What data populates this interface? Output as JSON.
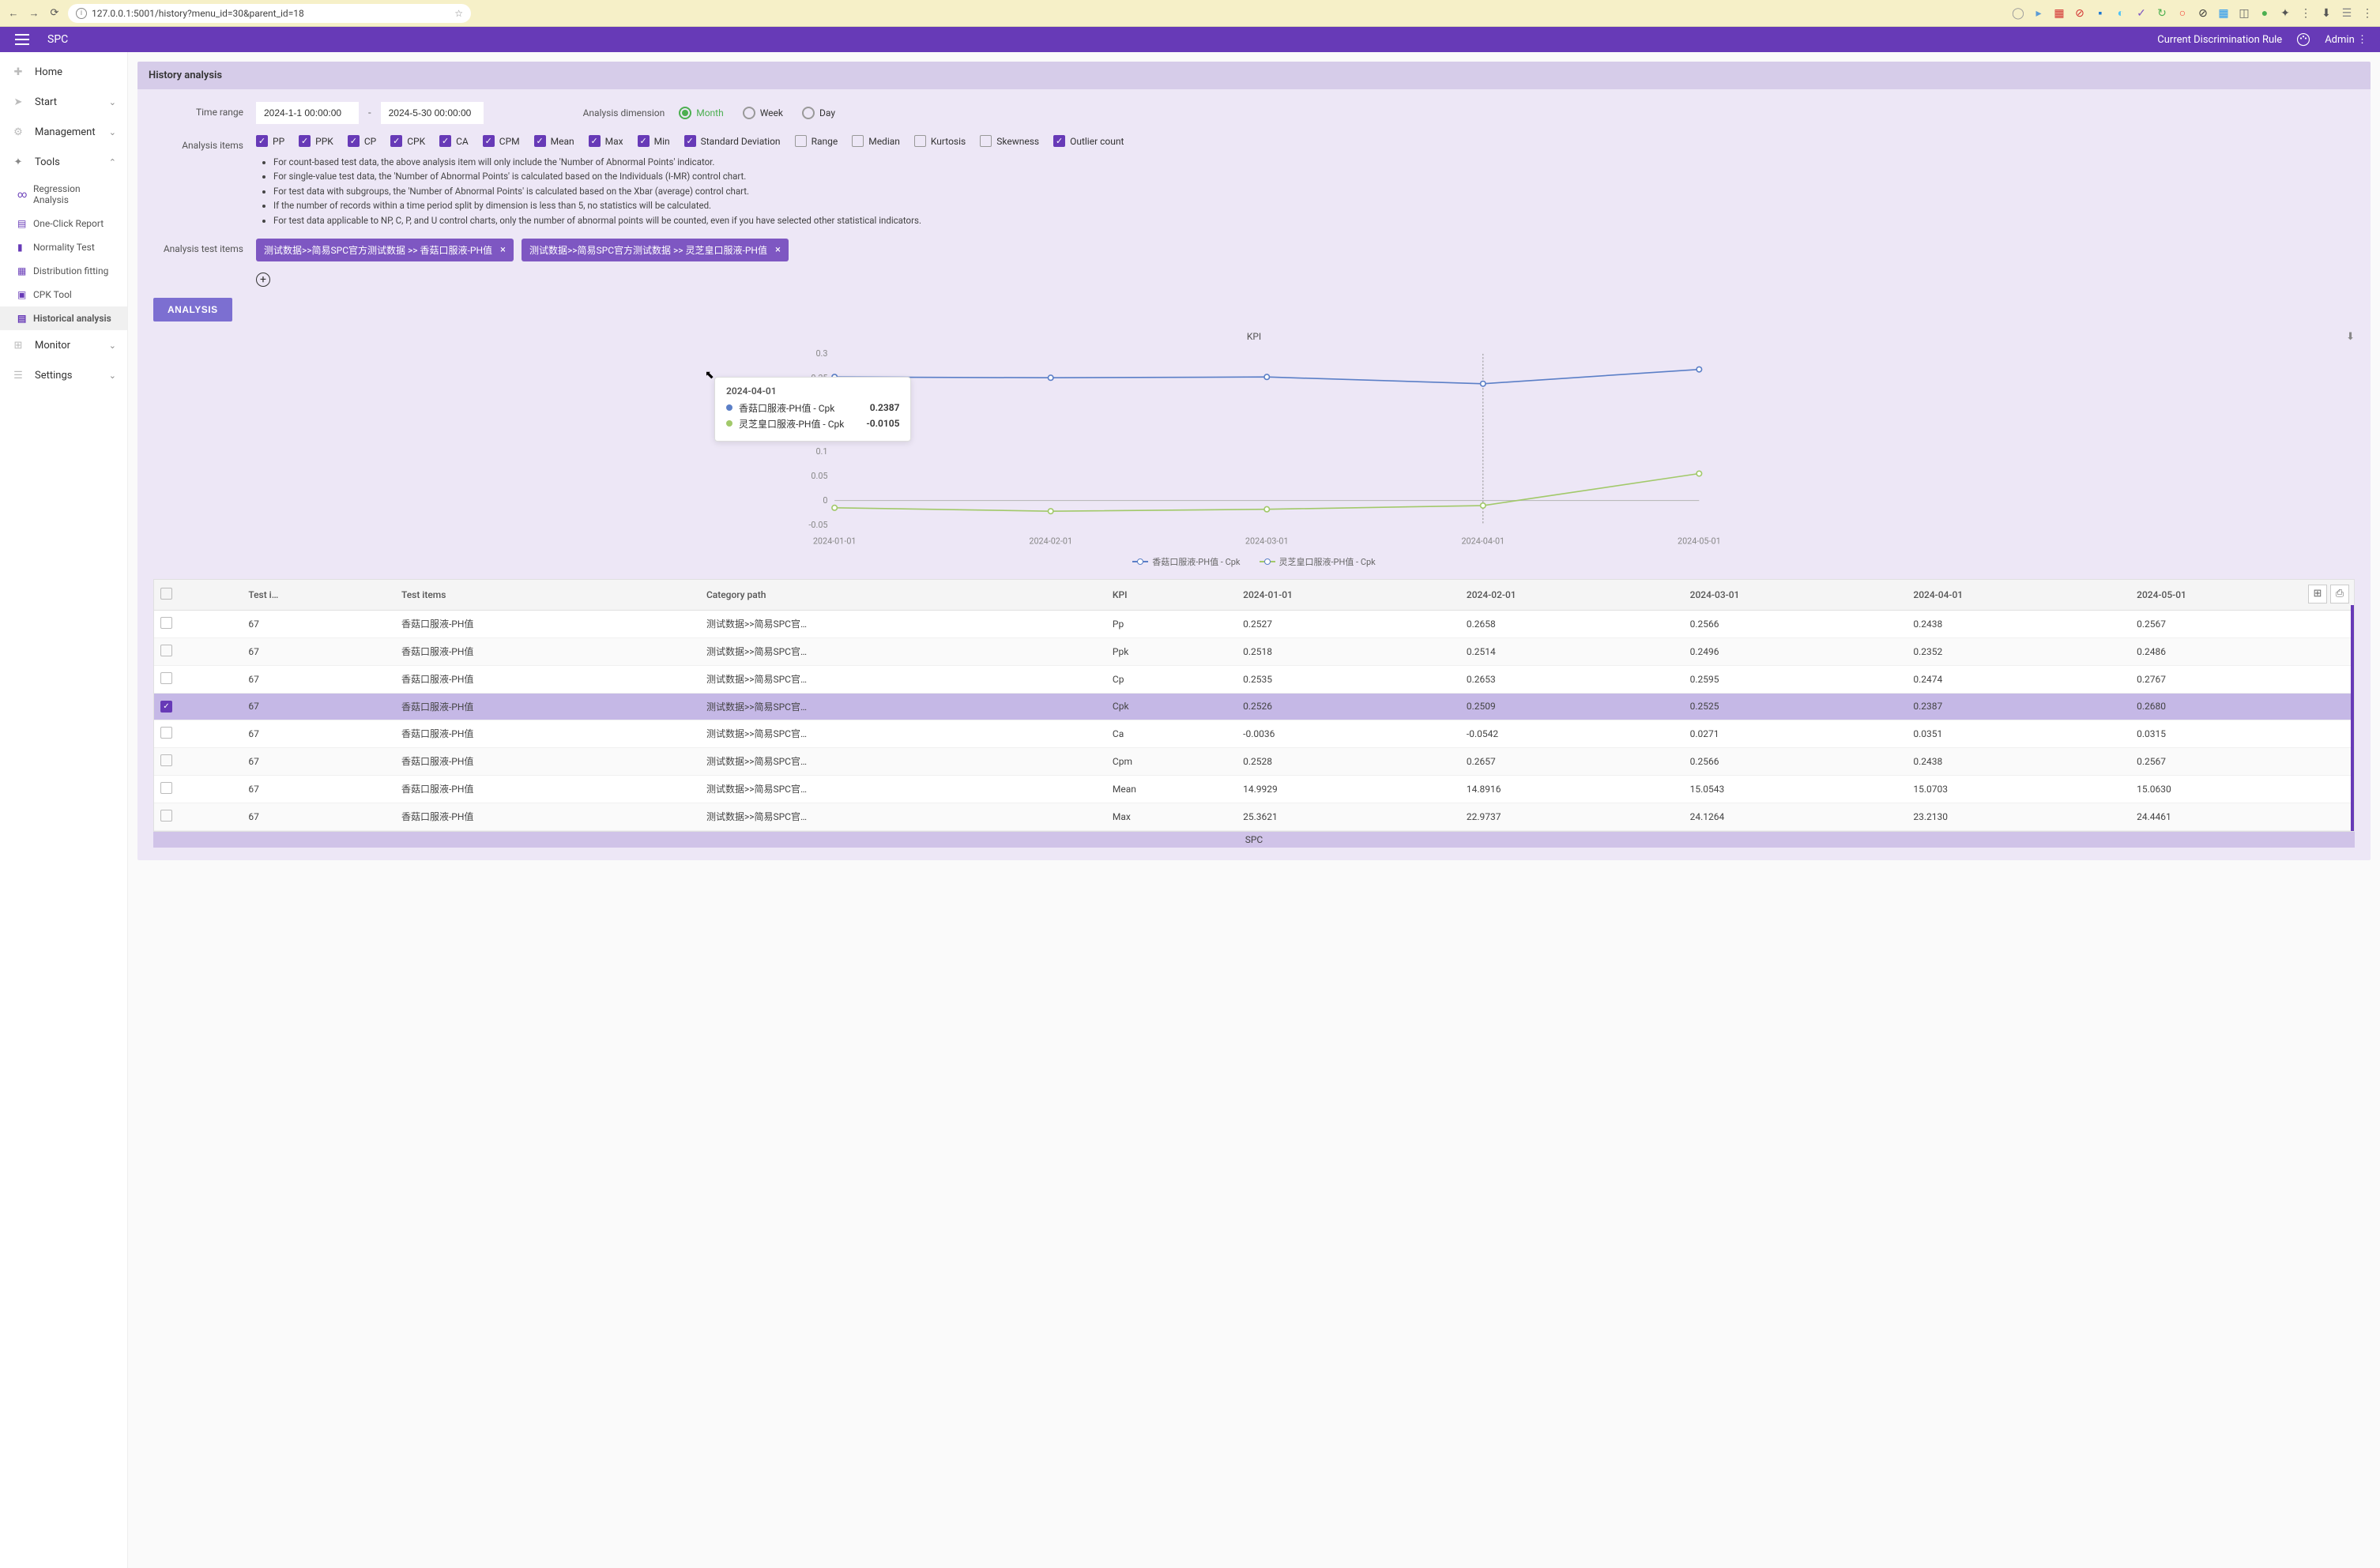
{
  "browser": {
    "url": "127.0.0.1:5001/history?menu_id=30&parent_id=18"
  },
  "header": {
    "app_name": "SPC",
    "rule_link": "Current Discrimination Rule",
    "user": "Admin"
  },
  "sidebar": {
    "home": "Home",
    "start": "Start",
    "management": "Management",
    "tools": "Tools",
    "tools_items": {
      "regression": "Regression Analysis",
      "oneclick": "One-Click Report",
      "normality": "Normality Test",
      "distfit": "Distribution fitting",
      "cpk": "CPK Tool",
      "hist": "Historical analysis"
    },
    "monitor": "Monitor",
    "settings": "Settings"
  },
  "panel": {
    "title": "History analysis",
    "time_range_label": "Time range",
    "date_from": "2024-1-1 00:00:00",
    "date_to": "2024-5-30 00:00:00",
    "dimension_label": "Analysis dimension",
    "dim_month": "Month",
    "dim_week": "Week",
    "dim_day": "Day",
    "items_label": "Analysis items",
    "checks": {
      "pp": "PP",
      "ppk": "PPK",
      "cp": "CP",
      "cpk": "CPK",
      "ca": "CA",
      "cpm": "CPM",
      "mean": "Mean",
      "max": "Max",
      "min": "Min",
      "std": "Standard Deviation",
      "range": "Range",
      "median": "Median",
      "kurtosis": "Kurtosis",
      "skewness": "Skewness",
      "outlier": "Outlier count"
    },
    "notes": [
      "For count-based test data, the above analysis item will only include the 'Number of Abnormal Points' indicator.",
      "For single-value test data, the 'Number of Abnormal Points' is calculated based on the Individuals (I-MR) control chart.",
      "For test data with subgroups, the 'Number of Abnormal Points' is calculated based on the Xbar (average) control chart.",
      "If the number of records within a time period split by dimension is less than 5, no statistics will be calculated.",
      "For test data applicable to NP, C, P, and U control charts, only the number of abnormal points will be counted, even if you have selected other statistical indicators."
    ],
    "test_items_label": "Analysis test items",
    "tags": [
      "测试数据>>简易SPC官方测试数据 >> 香菇口服液-PH值",
      "测试数据>>简易SPC官方测试数据 >> 灵芝皇口服液-PH值"
    ],
    "analysis_btn": "ANALYSIS"
  },
  "chart": {
    "title": "KPI",
    "x_labels": [
      "2024-01-01",
      "2024-02-01",
      "2024-03-01",
      "2024-04-01",
      "2024-05-01"
    ],
    "y_ticks": [
      -0.05,
      0,
      0.05,
      0.1,
      0.15,
      0.2,
      0.25,
      0.3
    ],
    "series": [
      {
        "name": "香菇口服液-PH值 - Cpk",
        "color": "#5b7fc7",
        "values": [
          0.2526,
          0.2509,
          0.2525,
          0.2387,
          0.268
        ]
      },
      {
        "name": "灵芝皇口服液-PH值 - Cpk",
        "color": "#a2c96a",
        "values": [
          -0.015,
          -0.022,
          -0.018,
          -0.0105,
          0.055
        ]
      }
    ],
    "tooltip": {
      "date": "2024-04-01",
      "rows": [
        {
          "label": "香菇口服液-PH值 - Cpk",
          "value": "0.2387",
          "color": "#5b7fc7"
        },
        {
          "label": "灵芝皇口服液-PH值 - Cpk",
          "value": "-0.0105",
          "color": "#a2c96a"
        }
      ]
    },
    "ylim": [
      -0.05,
      0.3
    ],
    "grid_color": "#d8d0e8",
    "background": "#ede7f6"
  },
  "table": {
    "columns": [
      "",
      "Test i…",
      "Test items",
      "Category path",
      "KPI",
      "2024-01-01",
      "2024-02-01",
      "2024-03-01",
      "2024-04-01",
      "2024-05-01"
    ],
    "rows": [
      {
        "sel": false,
        "id": "67",
        "item": "香菇口服液-PH值",
        "path": "测试数据>>简易SPC官…",
        "kpi": "Pp",
        "v": [
          "0.2527",
          "0.2658",
          "0.2566",
          "0.2438",
          "0.2567"
        ]
      },
      {
        "sel": false,
        "id": "67",
        "item": "香菇口服液-PH值",
        "path": "测试数据>>简易SPC官…",
        "kpi": "Ppk",
        "v": [
          "0.2518",
          "0.2514",
          "0.2496",
          "0.2352",
          "0.2486"
        ]
      },
      {
        "sel": false,
        "id": "67",
        "item": "香菇口服液-PH值",
        "path": "测试数据>>简易SPC官…",
        "kpi": "Cp",
        "v": [
          "0.2535",
          "0.2653",
          "0.2595",
          "0.2474",
          "0.2767"
        ]
      },
      {
        "sel": true,
        "id": "67",
        "item": "香菇口服液-PH值",
        "path": "测试数据>>简易SPC官…",
        "kpi": "Cpk",
        "v": [
          "0.2526",
          "0.2509",
          "0.2525",
          "0.2387",
          "0.2680"
        ]
      },
      {
        "sel": false,
        "id": "67",
        "item": "香菇口服液-PH值",
        "path": "测试数据>>简易SPC官…",
        "kpi": "Ca",
        "v": [
          "-0.0036",
          "-0.0542",
          "0.0271",
          "0.0351",
          "0.0315"
        ]
      },
      {
        "sel": false,
        "id": "67",
        "item": "香菇口服液-PH值",
        "path": "测试数据>>简易SPC官…",
        "kpi": "Cpm",
        "v": [
          "0.2528",
          "0.2657",
          "0.2566",
          "0.2438",
          "0.2567"
        ]
      },
      {
        "sel": false,
        "id": "67",
        "item": "香菇口服液-PH值",
        "path": "测试数据>>简易SPC官…",
        "kpi": "Mean",
        "v": [
          "14.9929",
          "14.8916",
          "15.0543",
          "15.0703",
          "15.0630"
        ]
      },
      {
        "sel": false,
        "id": "67",
        "item": "香菇口服液-PH值",
        "path": "测试数据>>简易SPC官…",
        "kpi": "Max",
        "v": [
          "25.3621",
          "22.9737",
          "24.1264",
          "23.2130",
          "24.4461"
        ]
      }
    ]
  },
  "footer": "SPC"
}
